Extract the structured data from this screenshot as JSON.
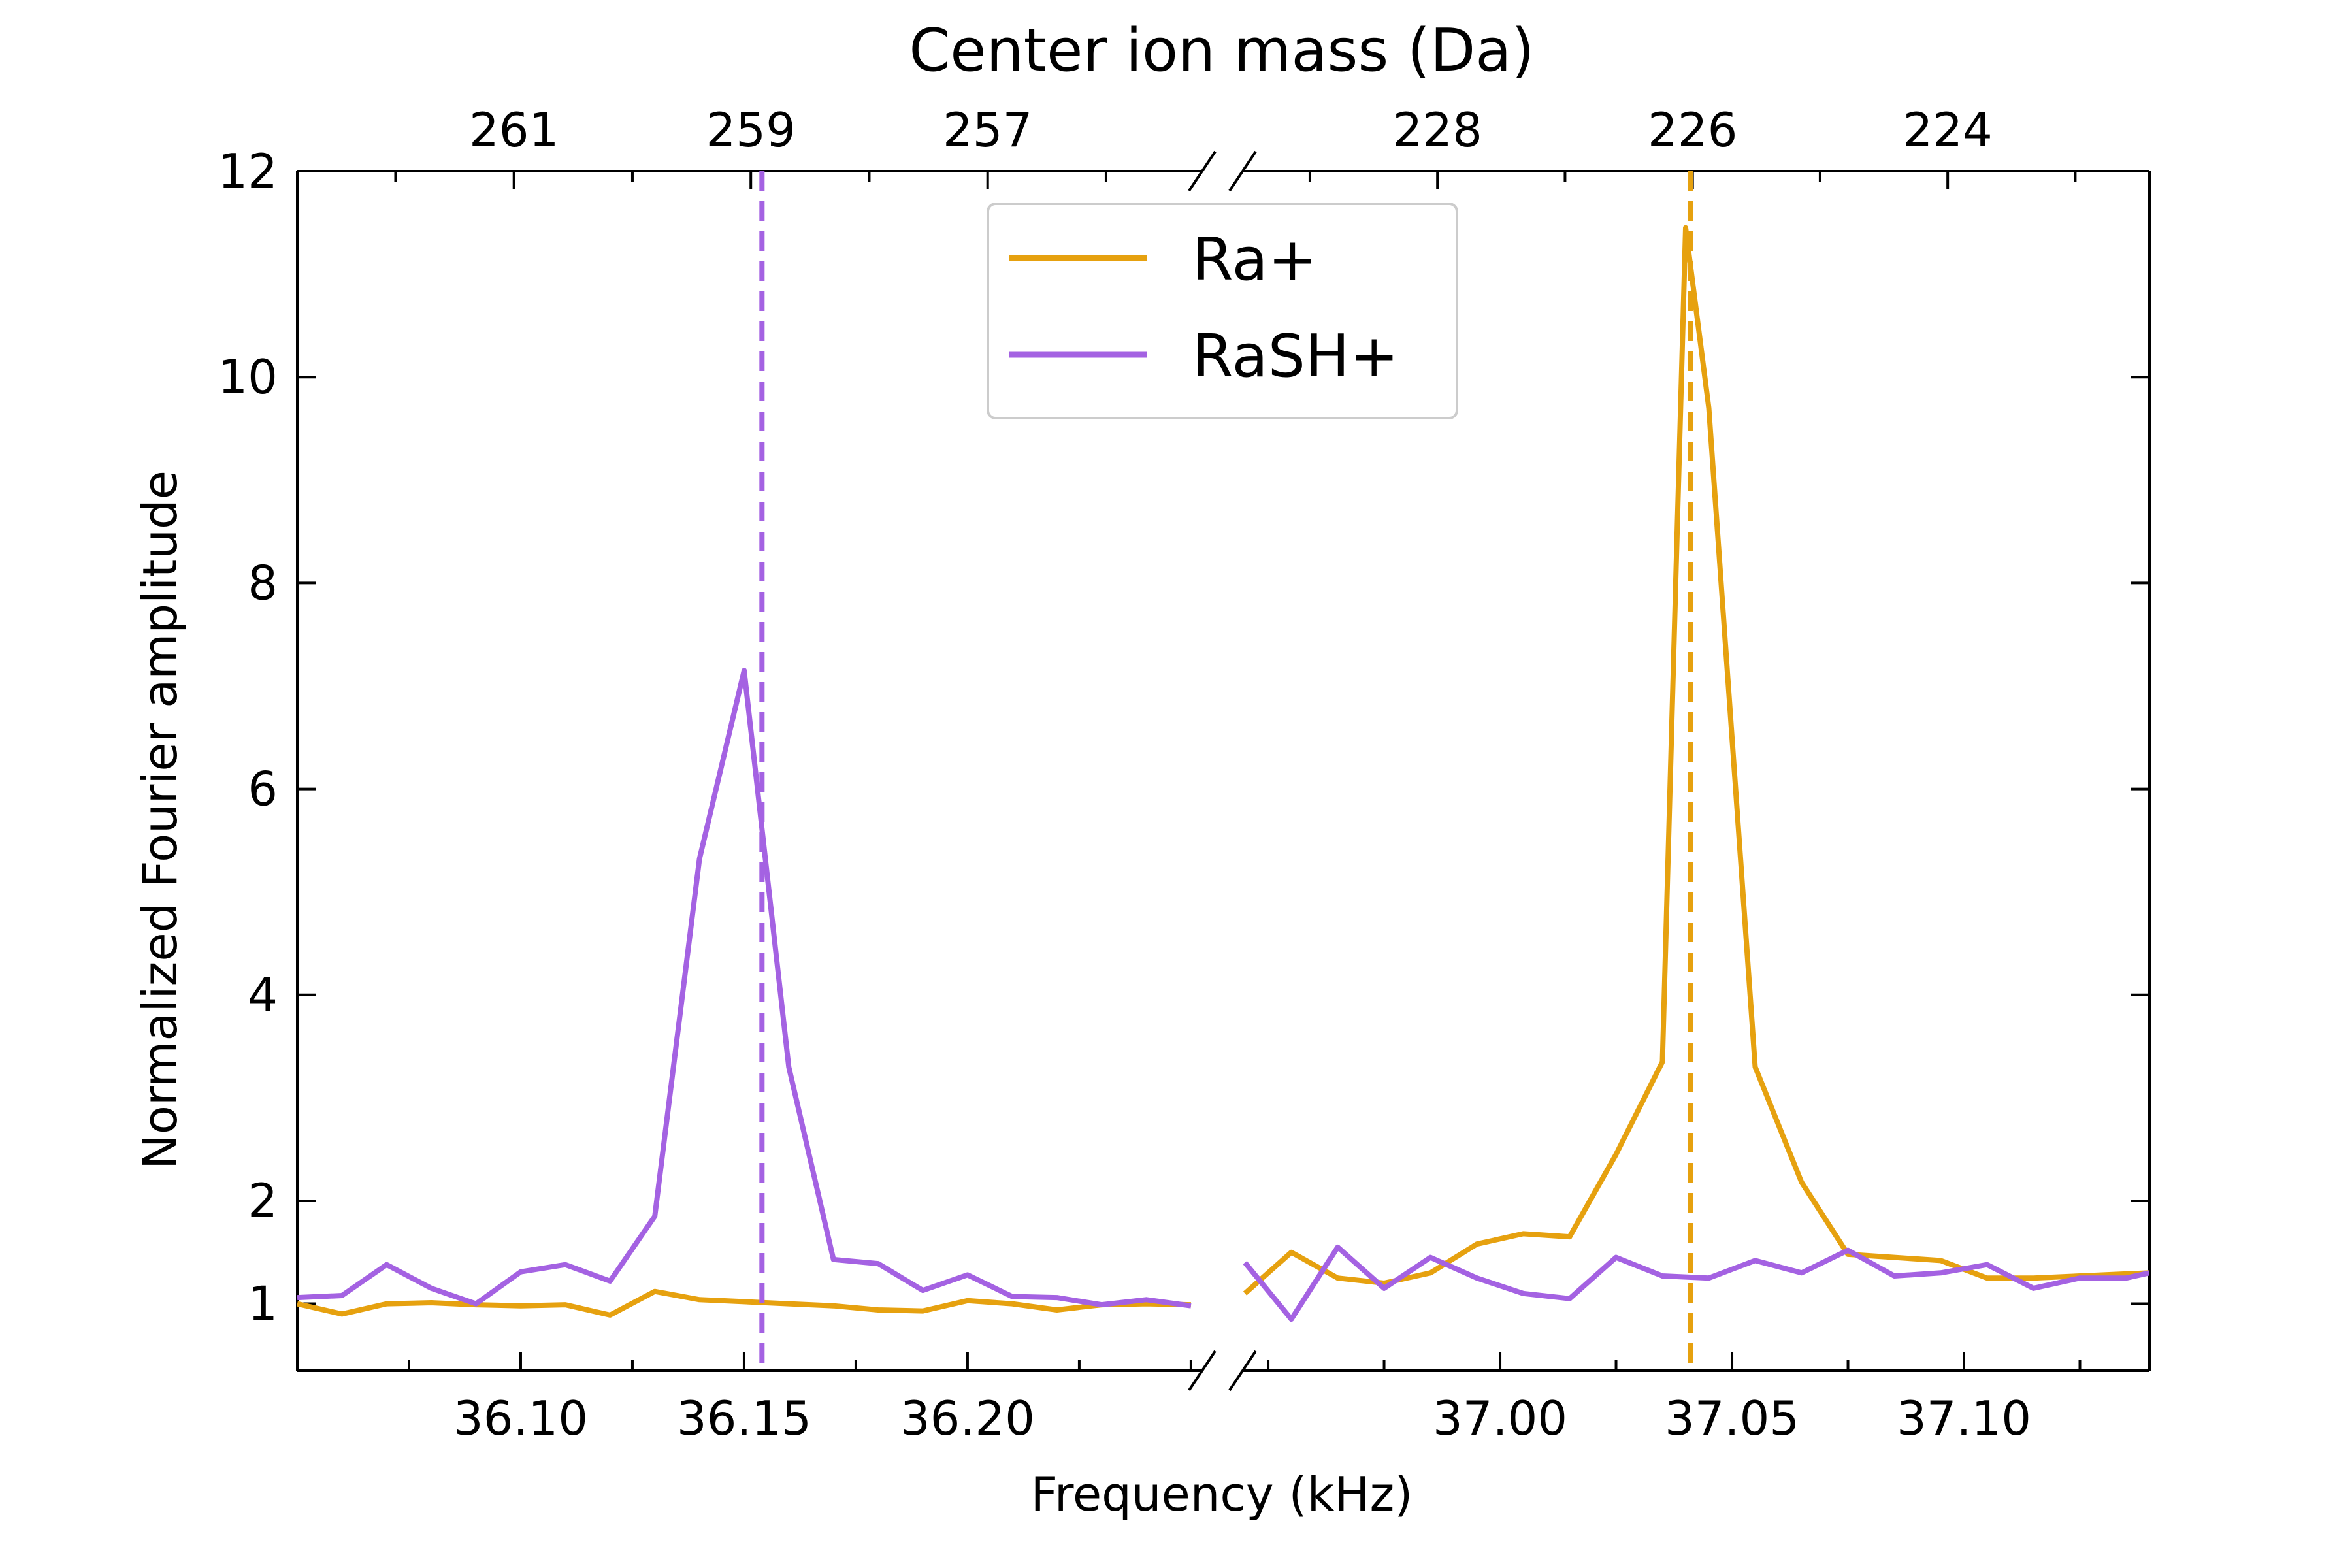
{
  "chart_data": {
    "type": "line",
    "title": "Center ion mass (Da)",
    "xlabel": "Frequency (kHz)",
    "ylabel": "Normalized Fourier amplitude",
    "ylim": [
      0.35,
      12
    ],
    "y_ticks": [
      1,
      2,
      4,
      6,
      8,
      10,
      12
    ],
    "x_axis_broken": true,
    "x_segments": [
      {
        "xlim": [
          36.05,
          36.2525
        ],
        "ticks": [
          36.1,
          36.15,
          36.2
        ],
        "tick_labels": [
          "36.10",
          "36.15",
          "36.20"
        ],
        "minor_step": 0.025
      },
      {
        "xlim": [
          36.9445,
          37.14
        ],
        "ticks": [
          37.0,
          37.05,
          37.1
        ],
        "tick_labels": [
          "37.00",
          "37.05",
          "37.10"
        ],
        "minor_step": 0.025
      }
    ],
    "top_axis": {
      "label": "Center ion mass (Da)",
      "ticks": [
        {
          "segment": 0,
          "freq": 36.0985,
          "label": "261"
        },
        {
          "segment": 0,
          "freq": 36.1515,
          "label": "259"
        },
        {
          "segment": 0,
          "freq": 36.2045,
          "label": "257"
        },
        {
          "segment": 1,
          "freq": 36.9865,
          "label": "228"
        },
        {
          "segment": 1,
          "freq": 37.0415,
          "label": "226"
        },
        {
          "segment": 1,
          "freq": 37.0965,
          "label": "224"
        }
      ],
      "minor_ticks": [
        {
          "segment": 0,
          "freq": 36.072
        },
        {
          "segment": 0,
          "freq": 36.125
        },
        {
          "segment": 0,
          "freq": 36.178
        },
        {
          "segment": 0,
          "freq": 36.231
        },
        {
          "segment": 1,
          "freq": 36.959
        },
        {
          "segment": 1,
          "freq": 37.014
        },
        {
          "segment": 1,
          "freq": 37.069
        },
        {
          "segment": 1,
          "freq": 37.124
        }
      ]
    },
    "series": [
      {
        "name": "Ra+",
        "color": "#E6A10F",
        "segments": [
          {
            "x": [
              36.05,
              36.06,
              36.07,
              36.08,
              36.09,
              36.1,
              36.11,
              36.12,
              36.13,
              36.14,
              36.15,
              36.16,
              36.17,
              36.18,
              36.19,
              36.2,
              36.21,
              36.22,
              36.23,
              36.24,
              36.25
            ],
            "y": [
              1.0,
              0.9,
              1.0,
              1.01,
              0.99,
              0.98,
              0.99,
              0.89,
              1.12,
              1.04,
              1.02,
              1.0,
              0.98,
              0.94,
              0.93,
              1.03,
              1.0,
              0.94,
              0.99,
              1.0,
              0.99
            ]
          },
          {
            "x": [
              36.945,
              36.955,
              36.965,
              36.975,
              36.985,
              36.995,
              37.005,
              37.015,
              37.025,
              37.035,
              37.04,
              37.045,
              37.055,
              37.065,
              37.075,
              37.085,
              37.095,
              37.105,
              37.115,
              37.125,
              37.14
            ],
            "y": [
              1.1,
              1.5,
              1.25,
              1.2,
              1.3,
              1.58,
              1.68,
              1.65,
              2.45,
              3.35,
              11.45,
              9.7,
              3.3,
              2.18,
              1.48,
              1.45,
              1.42,
              1.25,
              1.25,
              1.27,
              1.3
            ]
          }
        ]
      },
      {
        "name": "RaSH+",
        "color": "#A462E2",
        "segments": [
          {
            "x": [
              36.05,
              36.06,
              36.07,
              36.08,
              36.09,
              36.1,
              36.11,
              36.12,
              36.13,
              36.14,
              36.15,
              36.16,
              36.17,
              36.18,
              36.19,
              36.2,
              36.21,
              36.22,
              36.23,
              36.24,
              36.25
            ],
            "y": [
              1.06,
              1.08,
              1.38,
              1.15,
              1.0,
              1.31,
              1.38,
              1.22,
              1.85,
              5.32,
              7.15,
              3.3,
              1.43,
              1.39,
              1.13,
              1.28,
              1.07,
              1.06,
              0.99,
              1.04,
              0.98
            ]
          },
          {
            "x": [
              36.945,
              36.955,
              36.965,
              36.975,
              36.985,
              36.995,
              37.005,
              37.015,
              37.025,
              37.035,
              37.045,
              37.055,
              37.065,
              37.075,
              37.085,
              37.095,
              37.105,
              37.115,
              37.125,
              37.135,
              37.14
            ],
            "y": [
              1.4,
              0.85,
              1.55,
              1.15,
              1.45,
              1.25,
              1.1,
              1.05,
              1.45,
              1.27,
              1.25,
              1.42,
              1.3,
              1.52,
              1.27,
              1.3,
              1.38,
              1.15,
              1.25,
              1.25,
              1.3
            ]
          }
        ]
      }
    ],
    "reference_lines": [
      {
        "segment": 0,
        "x": 36.154,
        "color": "#A462E2",
        "style": "dashed"
      },
      {
        "segment": 1,
        "x": 37.041,
        "color": "#E6A10F",
        "style": "dashed"
      }
    ],
    "legend": {
      "placement": "upper-center",
      "entries": [
        {
          "label": "Ra+",
          "color": "#E6A10F"
        },
        {
          "label": "RaSH+",
          "color": "#A462E2"
        }
      ]
    },
    "grid": false
  }
}
